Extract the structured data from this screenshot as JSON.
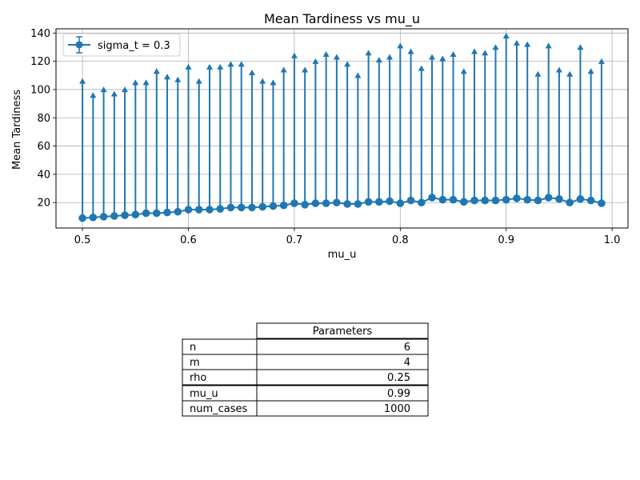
{
  "chart_data": {
    "type": "line",
    "title": "Mean Tardiness vs mu_u",
    "xlabel": "mu_u",
    "ylabel": "Mean Tardiness",
    "xlim": [
      0.475,
      1.015
    ],
    "ylim": [
      2,
      143
    ],
    "xticks": [
      0.5,
      0.6,
      0.7,
      0.8,
      0.9,
      1.0
    ],
    "xtick_labels": [
      "0.5",
      "0.6",
      "0.7",
      "0.8",
      "0.9",
      "1.0"
    ],
    "yticks": [
      20,
      40,
      60,
      80,
      100,
      120,
      140
    ],
    "ytick_labels": [
      "20",
      "40",
      "60",
      "80",
      "100",
      "120",
      "140"
    ],
    "grid": true,
    "legend_position": "top-left",
    "color": "#1f77b4",
    "series": [
      {
        "name": "sigma_t = 0.3",
        "x": [
          0.5,
          0.51,
          0.52,
          0.53,
          0.54,
          0.55,
          0.56,
          0.57,
          0.58,
          0.59,
          0.6,
          0.61,
          0.62,
          0.63,
          0.64,
          0.65,
          0.66,
          0.67,
          0.68,
          0.69,
          0.7,
          0.71,
          0.72,
          0.73,
          0.74,
          0.75,
          0.76,
          0.77,
          0.78,
          0.79,
          0.8,
          0.81,
          0.82,
          0.83,
          0.84,
          0.85,
          0.86,
          0.87,
          0.88,
          0.89,
          0.9,
          0.91,
          0.92,
          0.93,
          0.94,
          0.95,
          0.96,
          0.97,
          0.98,
          0.99
        ],
        "y": [
          9,
          9.5,
          10,
          10.5,
          11,
          11.5,
          12.5,
          12.5,
          13,
          13.5,
          15,
          15,
          15,
          15.5,
          16.5,
          16.5,
          16.5,
          17,
          17.5,
          18,
          19.5,
          18.5,
          19.5,
          19.5,
          20,
          19,
          19,
          20.5,
          20.5,
          21,
          19.5,
          21.5,
          20,
          23.5,
          22,
          22,
          20.5,
          21.5,
          21.5,
          21.5,
          22,
          23,
          22,
          21.5,
          23.5,
          22.5,
          20,
          22.5,
          21.5,
          19.5
        ],
        "error_upper": [
          107,
          97,
          101,
          98,
          101,
          106,
          106,
          114,
          110,
          108,
          117,
          107,
          117,
          117,
          119,
          119,
          113,
          107,
          106,
          115,
          125,
          115,
          121,
          126,
          124,
          119,
          111,
          127,
          122,
          124,
          132,
          128,
          116,
          124,
          123,
          126,
          114,
          128,
          127,
          131,
          139,
          134,
          133,
          112,
          132,
          115,
          112,
          131,
          114,
          121
        ]
      }
    ]
  },
  "table": {
    "header": "Parameters",
    "rows": [
      {
        "label": "n",
        "value": "6"
      },
      {
        "label": "m",
        "value": "4"
      },
      {
        "label": "rho",
        "value": "0.25"
      },
      {
        "label": "mu_u",
        "value": "0.99"
      },
      {
        "label": "num_cases",
        "value": "1000"
      }
    ]
  }
}
